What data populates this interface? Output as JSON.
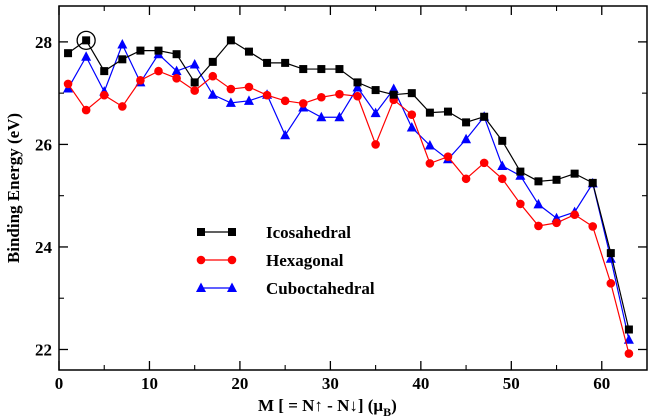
{
  "chart_data": {
    "type": "line",
    "xlabel": "M [ = N↑  - N↓]  (μ",
    "xlabel_sub": "B",
    "xlabel_close": ")",
    "ylabel": "Binding Energy (eV)",
    "xlim": [
      0,
      65
    ],
    "ylim": [
      21.6,
      28.7
    ],
    "xticks": [
      0,
      10,
      20,
      30,
      40,
      50,
      60
    ],
    "yticks": [
      22,
      24,
      26,
      28
    ],
    "x": [
      1,
      3,
      5,
      7,
      9,
      11,
      13,
      15,
      17,
      19,
      21,
      23,
      25,
      27,
      29,
      31,
      33,
      35,
      37,
      39,
      41,
      43,
      45,
      47,
      49,
      51,
      53,
      55,
      57,
      59,
      61,
      63
    ],
    "series": [
      {
        "name": "Icosahedral",
        "color": "#000000",
        "marker": "square",
        "values": [
          27.78,
          28.03,
          27.43,
          27.66,
          27.83,
          27.83,
          27.76,
          27.21,
          27.61,
          28.03,
          27.81,
          27.59,
          27.59,
          27.47,
          27.47,
          27.47,
          27.21,
          27.06,
          26.97,
          27.0,
          26.62,
          26.64,
          26.43,
          26.54,
          26.07,
          25.47,
          25.28,
          25.31,
          25.43,
          25.25,
          23.88,
          22.39
        ]
      },
      {
        "name": "Hexagonal",
        "color": "#ff0000",
        "marker": "circle",
        "values": [
          27.18,
          26.67,
          26.96,
          26.74,
          27.25,
          27.43,
          27.29,
          27.05,
          27.33,
          27.08,
          27.12,
          26.96,
          26.85,
          26.8,
          26.92,
          26.98,
          26.94,
          26.0,
          26.87,
          26.58,
          25.63,
          25.76,
          25.33,
          25.64,
          25.33,
          24.84,
          24.41,
          24.47,
          24.63,
          24.4,
          23.29,
          21.92
        ]
      },
      {
        "name": "Cuboctahedral",
        "color": "#0000ff",
        "marker": "triangle",
        "values": [
          27.09,
          27.71,
          27.03,
          27.95,
          27.21,
          27.76,
          27.43,
          27.56,
          26.97,
          26.81,
          26.85,
          26.97,
          26.18,
          26.72,
          26.53,
          26.53,
          27.11,
          26.61,
          27.08,
          26.33,
          25.98,
          25.71,
          26.1,
          26.54,
          25.58,
          25.39,
          24.83,
          24.56,
          24.68,
          25.24,
          23.77,
          22.19
        ]
      }
    ],
    "highlight": {
      "x": 3,
      "y": 28.03
    },
    "legend_position": "lower-left"
  }
}
